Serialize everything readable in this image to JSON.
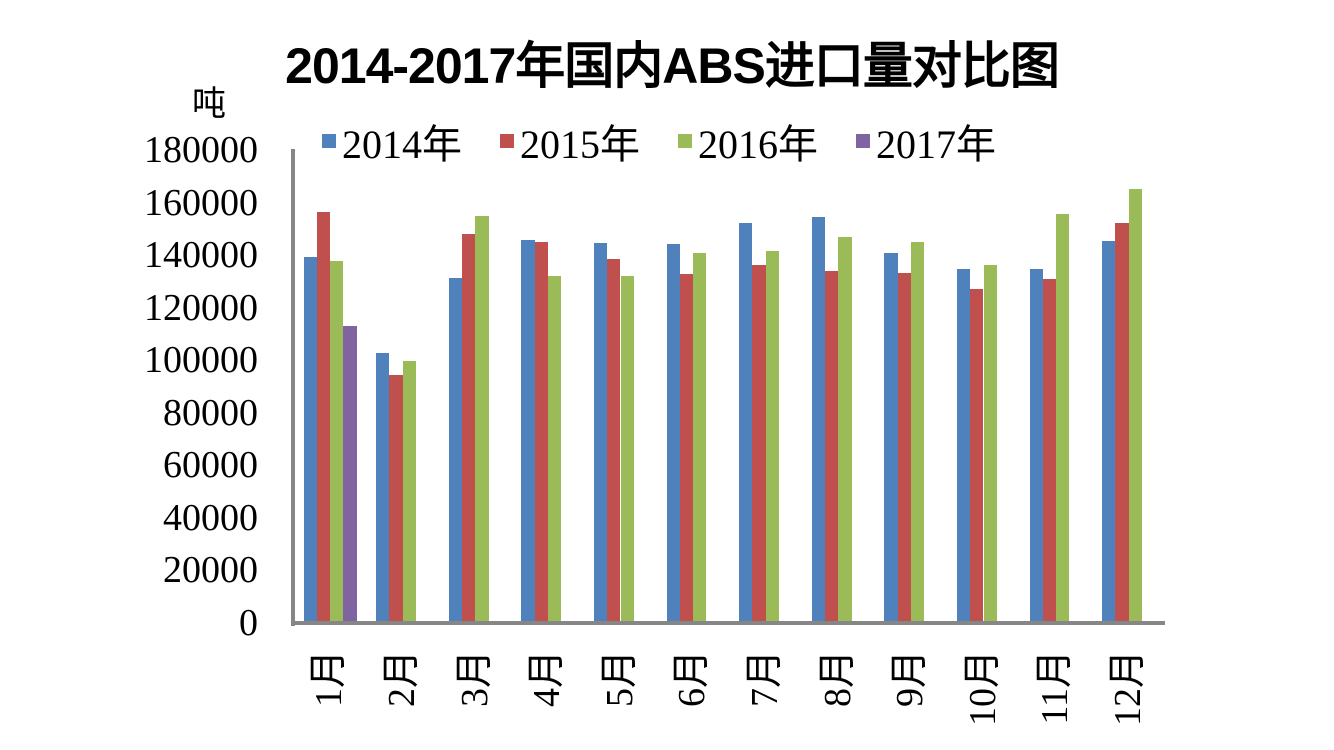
{
  "chart_data": {
    "type": "bar",
    "title": "2014-2017年国内ABS进口量对比图",
    "xlabel": "",
    "ylabel": "吨",
    "ylim": [
      0,
      180000
    ],
    "yticks": [
      0,
      20000,
      40000,
      60000,
      80000,
      100000,
      120000,
      140000,
      160000,
      180000
    ],
    "grid": false,
    "legend_position": "top",
    "categories": [
      "1月",
      "2月",
      "3月",
      "4月",
      "5月",
      "6月",
      "7月",
      "8月",
      "9月",
      "10月",
      "11月",
      "12月"
    ],
    "series": [
      {
        "name": "2014年",
        "color": "#4F81BD",
        "values": [
          139300,
          102700,
          131300,
          145700,
          144600,
          144300,
          152100,
          154500,
          140900,
          134800,
          134800,
          145200
        ]
      },
      {
        "name": "2015年",
        "color": "#C0504D",
        "values": [
          156400,
          94400,
          148000,
          144900,
          138500,
          132800,
          136200,
          134100,
          133100,
          127000,
          130800,
          152100
        ]
      },
      {
        "name": "2016年",
        "color": "#9BBB59",
        "values": [
          137700,
          99700,
          154900,
          132000,
          132000,
          140900,
          141600,
          146800,
          145100,
          136300,
          155600,
          165100
        ]
      },
      {
        "name": "2017年",
        "color": "#8064A2",
        "values": [
          113100,
          null,
          null,
          null,
          null,
          null,
          null,
          null,
          null,
          null,
          null,
          null
        ]
      }
    ]
  },
  "labels": {
    "title": "2014-2017年国内ABS进口量对比图",
    "unit": "吨",
    "legend": [
      "2014年",
      "2015年",
      "2016年",
      "2017年"
    ],
    "yticks": [
      "180000",
      "160000",
      "140000",
      "120000",
      "100000",
      "80000",
      "60000",
      "40000",
      "20000",
      "0"
    ]
  }
}
